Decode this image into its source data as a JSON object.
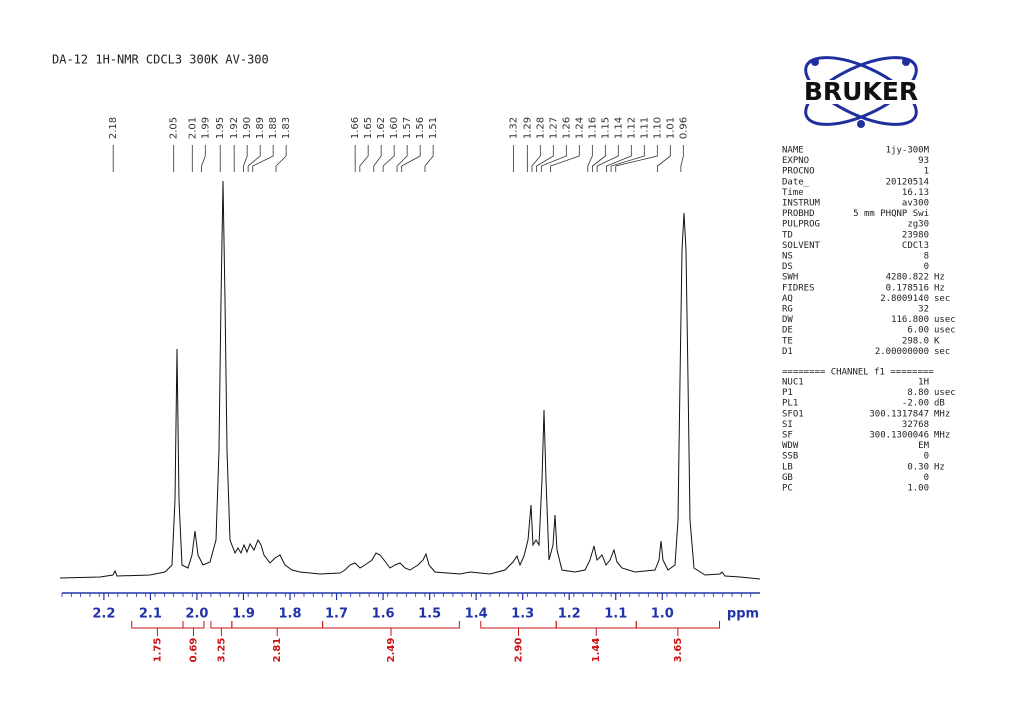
{
  "chart_data": {
    "type": "nmr",
    "title": "DA-12  1H-NMR  CDCL3  300K AV-300",
    "logo": "BRUKER",
    "x_label": "ppm",
    "xlim": [
      2.29,
      0.79
    ],
    "xticks": [
      2.2,
      2.1,
      {
        "value": 2.0,
        "label": "2.0"
      },
      1.9,
      1.8,
      1.7,
      1.6,
      1.5,
      1.4,
      1.3,
      1.2,
      1.1,
      {
        "value": 1.0,
        "label": "1.0"
      }
    ],
    "peaks": [
      2.18,
      2.05,
      2.01,
      1.99,
      1.95,
      1.92,
      {
        "value": 1.9,
        "label": "1.90"
      },
      1.89,
      1.88,
      1.83,
      1.66,
      1.65,
      1.62,
      {
        "value": 1.6,
        "label": "1.60"
      },
      1.57,
      1.56,
      1.51,
      1.32,
      1.29,
      1.28,
      1.27,
      1.26,
      1.24,
      1.16,
      1.15,
      1.14,
      1.12,
      1.11,
      {
        "value": 1.1,
        "label": "1.10"
      },
      1.01,
      0.96
    ],
    "integrals": [
      {
        "range": [
          2.14,
          2.03
        ],
        "value": 1.75
      },
      {
        "range": [
          2.03,
          1.985
        ],
        "value": 0.69
      },
      {
        "range": [
          1.97,
          1.925
        ],
        "value": 3.25
      },
      {
        "range": [
          1.925,
          1.73
        ],
        "value": 2.81
      },
      {
        "range": [
          1.73,
          1.436
        ],
        "value": 2.49
      },
      {
        "range": [
          1.39,
          1.228
        ],
        "value": {
          "value": 2.9,
          "label": "2.90"
        }
      },
      {
        "range": [
          1.228,
          1.056
        ],
        "value": 1.44
      },
      {
        "range": [
          1.056,
          0.877
        ],
        "value": 3.65
      }
    ],
    "parameters": [
      [
        "NAME",
        "1jy-300M"
      ],
      [
        "EXPNO",
        "93"
      ],
      [
        "PROCNO",
        "1"
      ],
      [
        "Date_",
        "20120514"
      ],
      [
        "Time",
        "16.13"
      ],
      [
        "INSTRUM",
        "av300"
      ],
      [
        "PROBHD",
        "5 mm PHQNP Swi"
      ],
      [
        "PULPROG",
        "zg30"
      ],
      [
        "TD",
        "23980"
      ],
      [
        "SOLVENT",
        "CDCl3"
      ],
      [
        "NS",
        "8"
      ],
      [
        "DS",
        "0"
      ],
      [
        "SWH",
        "4280.822",
        "Hz"
      ],
      [
        "FIDRES",
        "0.178516",
        "Hz"
      ],
      [
        "AQ",
        "2.8009140",
        "sec"
      ],
      [
        "RG",
        "32"
      ],
      [
        "DW",
        "116.800",
        "usec"
      ],
      [
        "DE",
        "6.00",
        "usec"
      ],
      [
        "TE",
        "298.0",
        "K"
      ],
      [
        "D1",
        "2.00000000",
        "sec"
      ]
    ],
    "channel_header": "======== CHANNEL f1 ========",
    "channel_parameters": [
      [
        "NUC1",
        "1H"
      ],
      [
        "P1",
        "8.80",
        "usec"
      ],
      [
        "PL1",
        "-2.00",
        "dB"
      ],
      [
        "SFO1",
        "300.1317847",
        "MHz"
      ],
      [
        "SI",
        "32768"
      ],
      [
        "SF",
        "300.1300046",
        "MHz"
      ],
      [
        "WDW",
        "EM"
      ],
      [
        "SSB",
        "0"
      ],
      [
        "LB",
        "0.30",
        "Hz"
      ],
      [
        "GB",
        "0"
      ],
      [
        "PC",
        "1.00"
      ]
    ]
  }
}
